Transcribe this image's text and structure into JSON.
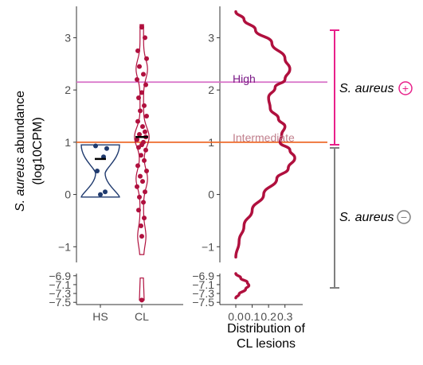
{
  "chart_data": [
    {
      "type": "violin",
      "ylabel_line1_italic": "S. aureus",
      "ylabel_line1_rest": " abundance",
      "ylabel_line2": "(log10CPM)",
      "categories": [
        "HS",
        "CL"
      ],
      "upper_panel": {
        "ylim": [
          -1.3,
          3.6
        ],
        "yticks": [
          -1,
          0,
          1,
          2,
          3
        ],
        "ytick_labels": [
          "−1",
          "0",
          "1",
          "2",
          "3"
        ]
      },
      "lower_panel": {
        "ylim": [
          -7.55,
          -6.85
        ],
        "yticks": [
          -6.9,
          -7.1,
          -7.3,
          -7.5
        ],
        "ytick_labels": [
          "−6.9",
          "−7.1",
          "−7.3",
          "−7.5"
        ]
      },
      "series": [
        {
          "name": "HS",
          "color": "#1f3a6e",
          "points": [
            0.93,
            0.88,
            0.72,
            0.45,
            0.05,
            0.0
          ],
          "median": 0.68
        },
        {
          "name": "CL",
          "color": "#b0103e",
          "points": [
            3.2,
            3.0,
            2.75,
            2.6,
            2.45,
            2.3,
            2.2,
            2.1,
            1.95,
            1.85,
            1.7,
            1.6,
            1.5,
            1.4,
            1.3,
            1.2,
            1.15,
            1.1,
            1.05,
            1.0,
            0.95,
            0.9,
            0.85,
            0.75,
            0.65,
            0.55,
            0.45,
            0.35,
            0.25,
            0.15,
            0.05,
            -0.05,
            -0.15,
            -0.3,
            -0.45,
            -0.6,
            -0.8,
            -7.45
          ],
          "median": 1.1
        }
      ],
      "thresholds": [
        {
          "label": "High",
          "value": 2.15,
          "color": "#d770c8",
          "label_color": "#7a1a86"
        },
        {
          "label": "Intermediate",
          "value": 1.0,
          "color": "#ee6a2a",
          "label_color": "#c07f8c"
        }
      ]
    },
    {
      "type": "line",
      "xlabel_line1": "Distribution of",
      "xlabel_line2": "CL lesions",
      "xlim": [
        0,
        0.35
      ],
      "xticks": [
        0.0,
        0.1,
        0.2,
        0.3
      ],
      "xtick_labels": [
        "0.0",
        "0.1",
        "0.2",
        "0.3"
      ],
      "series_color": "#b0103e",
      "upper_density": [
        [
          0.0,
          3.5
        ],
        [
          0.05,
          3.35
        ],
        [
          0.12,
          3.15
        ],
        [
          0.22,
          2.9
        ],
        [
          0.3,
          2.6
        ],
        [
          0.33,
          2.4
        ],
        [
          0.3,
          2.2
        ],
        [
          0.24,
          2.05
        ],
        [
          0.2,
          1.85
        ],
        [
          0.21,
          1.65
        ],
        [
          0.26,
          1.45
        ],
        [
          0.3,
          1.3
        ],
        [
          0.28,
          1.15
        ],
        [
          0.27,
          1.0
        ],
        [
          0.33,
          0.85
        ],
        [
          0.36,
          0.7
        ],
        [
          0.32,
          0.5
        ],
        [
          0.25,
          0.3
        ],
        [
          0.17,
          0.0
        ],
        [
          0.1,
          -0.3
        ],
        [
          0.05,
          -0.6
        ],
        [
          0.02,
          -0.9
        ],
        [
          0.0,
          -1.2
        ]
      ],
      "lower_density": [
        [
          0.0,
          -6.85
        ],
        [
          0.03,
          -6.95
        ],
        [
          0.07,
          -7.05
        ],
        [
          0.08,
          -7.12
        ],
        [
          0.06,
          -7.2
        ],
        [
          0.02,
          -7.32
        ],
        [
          0.0,
          -7.4
        ]
      ]
    }
  ],
  "legend": {
    "positive": {
      "label": "S. aureus",
      "symbol": "+",
      "color": "#e8208a"
    },
    "negative": {
      "label": "S. aureus",
      "symbol": "−",
      "color": "#7f7f7f"
    }
  }
}
